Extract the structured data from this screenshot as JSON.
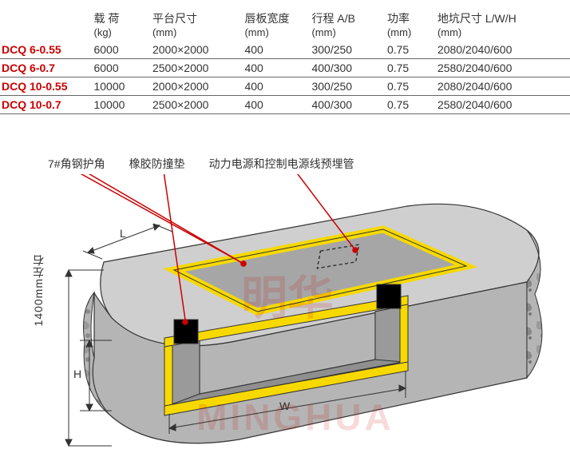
{
  "table": {
    "headers": [
      {
        "l1": "",
        "l2": ""
      },
      {
        "l1": "载 荷",
        "l2": "(kg)"
      },
      {
        "l1": "平台尺寸",
        "l2": "(mm)"
      },
      {
        "l1": "唇板宽度",
        "l2": "(mm)"
      },
      {
        "l1": "行程 A/B",
        "l2": "(mm)"
      },
      {
        "l1": "功率",
        "l2": "(mm)"
      },
      {
        "l1": "地坑尺寸 L/W/H",
        "l2": "(mm)"
      }
    ],
    "rows": [
      [
        "DCQ 6-0.55",
        "6000",
        "2000×2000",
        "400",
        "300/250",
        "0.75",
        "2080/2040/600"
      ],
      [
        "DCQ 6-0.7",
        "6000",
        "2500×2000",
        "400",
        "400/300",
        "0.75",
        "2580/2040/600"
      ],
      [
        "DCQ 10-0.55",
        "10000",
        "2000×2000",
        "400",
        "300/250",
        "0.75",
        "2080/2040/600"
      ],
      [
        "DCQ 10-0.7",
        "10000",
        "2500×2000",
        "400",
        "400/300",
        "0.75",
        "2580/2040/600"
      ]
    ]
  },
  "captions": {
    "angle": "7#角钢护角",
    "rubber": "橡胶防撞垫",
    "conduit": "动力电源和控制电源线预埋管"
  },
  "diagram": {
    "dims": {
      "L": "L",
      "W": "W",
      "H": "H"
    },
    "height_note": "1400mm左右",
    "watermark1": "明华",
    "watermark2": "MINGHUA",
    "colors": {
      "angle_steel": "#f7d900",
      "concrete_top": "#cfcfcf",
      "concrete_side": "#b5b5b5",
      "concrete_dark": "#9a9a9a",
      "pit_wall": "#a6a6a6",
      "pit_floor": "#8f8f8f",
      "bumper": "#000000",
      "callout": "#cc0000",
      "texture": "#6f6f6f",
      "watermark": "rgba(200,0,0,0.15)"
    }
  }
}
